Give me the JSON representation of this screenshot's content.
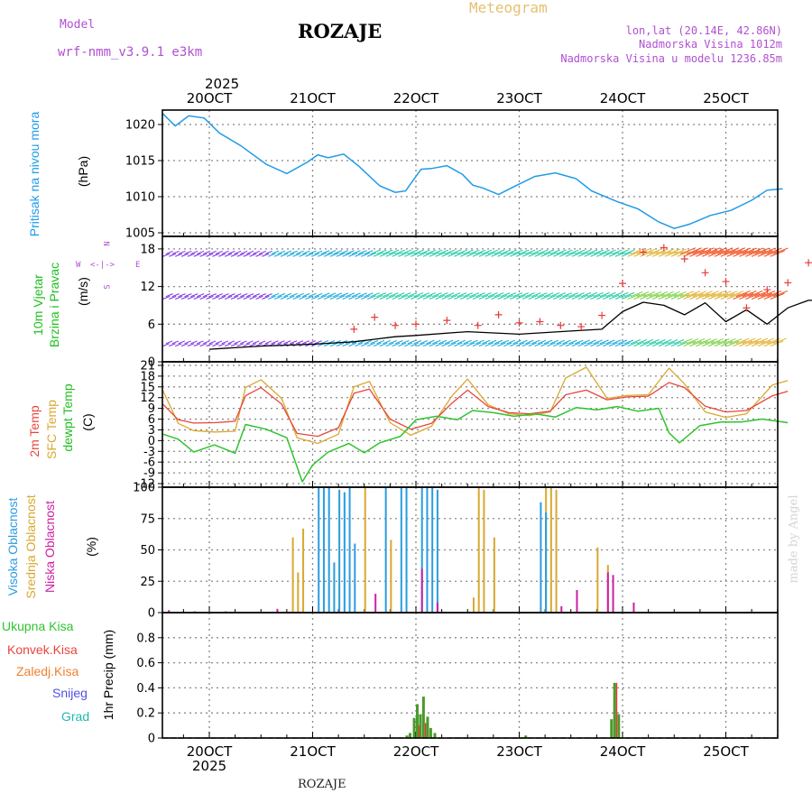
{
  "header": {
    "model_label": "Model",
    "model_name": "wrf-nmm_v3.9.1 e3km",
    "title": "ROZAJE",
    "subtitle": "Meteogram",
    "lonlat": "lon,lat (20.14E, 42.86N)",
    "elevation": "Nadmorska Visina 1012m",
    "model_elevation": "Nadmorska Visina u modelu 1236.85m",
    "watermark": "made by Angel",
    "footer_station": "ROZAJE",
    "year": "2025"
  },
  "colors": {
    "pressure": "#1e9be8",
    "temp2m": "#e8453c",
    "sfc": "#d9a830",
    "dewpt": "#2ec42e",
    "high_cloud": "#2a9ce0",
    "mid_cloud": "#d9a830",
    "low_cloud": "#cc1fa3",
    "total_precip": "#4a9a2a",
    "conv_precip": "#e0403a",
    "frozen_precip": "#f08030",
    "snow": "#5050e0",
    "graupel": "#20b8b0",
    "wind_speed_line": "#000000",
    "gust_marker": "#e83a3a",
    "direction_label": "#b050d0"
  },
  "chart_data": [
    {
      "type": "line",
      "panel": "pressure",
      "title": "Pritisak na nivou mora",
      "ylabel": "(hPa)",
      "ylim": [
        1004.5,
        1022
      ],
      "yticks": [
        1005,
        1010,
        1015,
        1020
      ],
      "grid": true,
      "xlim_days": [
        0,
        6.1
      ],
      "x_top_ticks": [
        "20OCT",
        "21OCT",
        "22OCT",
        "23OCT",
        "24OCT",
        "25OCT"
      ],
      "x_days": [
        0,
        0.12,
        0.25,
        0.4,
        0.55,
        0.75,
        1.0,
        1.2,
        1.4,
        1.5,
        1.6,
        1.75,
        1.9,
        2.1,
        2.25,
        2.35,
        2.5,
        2.6,
        2.75,
        2.9,
        3.0,
        3.1,
        3.25,
        3.4,
        3.6,
        3.8,
        4.0,
        4.15,
        4.4,
        4.6,
        4.8,
        4.95,
        5.1,
        5.3,
        5.5,
        5.7,
        5.85,
        6.0
      ],
      "values": [
        1021.5,
        1019.8,
        1021.2,
        1020.9,
        1018.8,
        1017.1,
        1014.5,
        1013.2,
        1014.8,
        1015.8,
        1015.4,
        1015.9,
        1014.2,
        1011.5,
        1010.6,
        1010.8,
        1013.8,
        1013.9,
        1014.3,
        1013.1,
        1011.6,
        1011.2,
        1010.3,
        1011.4,
        1012.8,
        1013.3,
        1012.5,
        1010.8,
        1009.3,
        1008.3,
        1006.5,
        1005.6,
        1006.2,
        1007.4,
        1008.1,
        1009.5,
        1010.9,
        1011.1
      ]
    },
    {
      "type": "line",
      "panel": "wind",
      "title": "10m Vjetar Brzina i Pravac",
      "ylabel": "(m/s)",
      "direction_labels": [
        "N",
        "W",
        "<-|->",
        "E",
        "S"
      ],
      "ylim": [
        0,
        20
      ],
      "yticks": [
        0,
        6,
        12,
        18
      ],
      "grid": true,
      "series": [
        {
          "name": "Brzina vjetra",
          "x_days": [
            0,
            0.5,
            1.0,
            1.4,
            1.6,
            1.8,
            2.0,
            2.5,
            3.0,
            3.5,
            3.8,
            4.0,
            4.2,
            4.4,
            4.6,
            4.8,
            5.0,
            5.2,
            5.4,
            5.6,
            5.8,
            6.0
          ],
          "values": [
            2.0,
            2.5,
            2.8,
            3.2,
            3.6,
            4.0,
            4.2,
            4.8,
            4.4,
            4.9,
            5.2,
            8.0,
            9.5,
            9.0,
            7.5,
            9.4,
            6.4,
            8.3,
            6.0,
            8.6,
            9.8,
            9.8
          ]
        },
        {
          "name": "Udar vjetra",
          "x_days": [
            1.4,
            1.6,
            1.8,
            2.0,
            2.3,
            2.6,
            2.8,
            3.0,
            3.2,
            3.4,
            3.6,
            3.8,
            4.0,
            4.2,
            4.4,
            4.6,
            4.8,
            5.0,
            5.2,
            5.4,
            5.6,
            5.8,
            6.0
          ],
          "values": [
            5.2,
            7.1,
            5.8,
            6.0,
            6.6,
            5.8,
            7.5,
            6.2,
            6.4,
            5.8,
            5.6,
            7.4,
            12.5,
            17.5,
            18.2,
            16.4,
            14.2,
            12.8,
            8.6,
            11.5,
            12.6,
            15.8,
            14.6
          ]
        }
      ]
    },
    {
      "type": "line",
      "panel": "temperature",
      "title": "2m Temp",
      "title2": "SFC Temp",
      "title3": "dewpt Temp",
      "ylabel": "(C)",
      "ylim": [
        -13,
        22
      ],
      "yticks": [
        -12,
        -9,
        -6,
        -3,
        0,
        3,
        6,
        9,
        12,
        15,
        18,
        21
      ],
      "grid": true,
      "series": [
        {
          "name": "2m Temp",
          "x_days": [
            0,
            0.15,
            0.3,
            0.5,
            0.7,
            0.8,
            0.95,
            1.15,
            1.3,
            1.5,
            1.7,
            1.85,
            2.0,
            2.2,
            2.4,
            2.6,
            2.8,
            2.95,
            3.15,
            3.35,
            3.55,
            3.75,
            3.9,
            4.1,
            4.3,
            4.5,
            4.7,
            4.9,
            5.05,
            5.25,
            5.45,
            5.65,
            5.9,
            6.05
          ],
          "values": [
            10.2,
            5.8,
            4.9,
            5.0,
            5.4,
            12.5,
            14.8,
            10.2,
            2.0,
            1.2,
            3.6,
            13.2,
            14.4,
            6.0,
            3.2,
            4.8,
            10.5,
            14.1,
            9.5,
            7.8,
            7.5,
            8.2,
            12.8,
            14.1,
            11.4,
            12.2,
            12.4,
            16.2,
            14.8,
            9.6,
            8.0,
            8.4,
            12.5,
            13.8
          ]
        },
        {
          "name": "SFC Temp",
          "x_days": [
            0,
            0.15,
            0.3,
            0.5,
            0.7,
            0.8,
            0.95,
            1.15,
            1.3,
            1.5,
            1.7,
            1.85,
            2.0,
            2.2,
            2.4,
            2.6,
            2.8,
            2.95,
            3.15,
            3.35,
            3.55,
            3.75,
            3.9,
            4.1,
            4.3,
            4.5,
            4.7,
            4.9,
            5.05,
            5.25,
            5.45,
            5.65,
            5.9,
            6.05
          ],
          "values": [
            14.0,
            4.8,
            2.8,
            2.4,
            2.6,
            14.8,
            17.0,
            11.8,
            0.8,
            -0.8,
            1.8,
            15.0,
            16.5,
            5.0,
            1.5,
            4.0,
            12.5,
            17.2,
            10.0,
            7.5,
            7.0,
            8.0,
            17.5,
            20.5,
            11.8,
            12.6,
            12.8,
            20.2,
            15.8,
            8.0,
            6.5,
            7.5,
            15.5,
            16.8
          ]
        },
        {
          "name": "dewpt Temp",
          "x_days": [
            0,
            0.15,
            0.3,
            0.5,
            0.7,
            0.8,
            1.0,
            1.2,
            1.35,
            1.45,
            1.6,
            1.8,
            1.95,
            2.1,
            2.3,
            2.45,
            2.65,
            2.85,
            3.0,
            3.2,
            3.4,
            3.6,
            3.8,
            4.0,
            4.2,
            4.4,
            4.6,
            4.8,
            4.9,
            5.0,
            5.2,
            5.4,
            5.6,
            5.8,
            6.05
          ],
          "values": [
            1.8,
            0.4,
            -3.2,
            -1.2,
            -3.5,
            4.5,
            3.2,
            0.8,
            -11.5,
            -6.8,
            -3.2,
            -0.8,
            -3.4,
            -0.6,
            1.2,
            5.8,
            6.8,
            5.8,
            8.4,
            7.8,
            6.8,
            7.5,
            6.6,
            9.2,
            8.6,
            9.5,
            8.2,
            9.0,
            2.2,
            -0.6,
            4.2,
            5.2,
            5.2,
            6.0,
            5.0
          ]
        }
      ]
    },
    {
      "type": "bar",
      "panel": "cloud",
      "title": "Visoka Oblacnost",
      "title2": "Srednja Oblacnost",
      "title3": "Niska Oblacnost",
      "ylabel": "(%)",
      "ylim": [
        0,
        100
      ],
      "yticks": [
        0,
        25,
        50,
        75,
        100
      ],
      "grid": true,
      "series": [
        {
          "name": "Srednja Oblacnost",
          "x_days": [
            1.25,
            1.3,
            1.35,
            1.95,
            2.2,
            3.0,
            3.05,
            3.1,
            3.2,
            3.7,
            3.75,
            3.8,
            4.2,
            4.3
          ],
          "values": [
            60,
            32,
            67,
            100,
            58,
            12,
            100,
            98,
            60,
            100,
            100,
            98,
            52,
            38
          ]
        },
        {
          "name": "Visoka Oblacnost",
          "x_days": [
            1.5,
            1.55,
            1.6,
            1.65,
            1.7,
            1.75,
            1.8,
            1.85,
            2.15,
            2.3,
            2.35,
            2.5,
            2.55,
            2.6,
            2.65,
            3.65,
            3.7
          ],
          "values": [
            100,
            100,
            100,
            40,
            98,
            96,
            100,
            55,
            100,
            100,
            100,
            100,
            100,
            100,
            98,
            88,
            80
          ]
        },
        {
          "name": "Niska Oblacnost",
          "x_days": [
            0.05,
            0.3,
            0.6,
            1.1,
            2.05,
            2.5,
            2.65,
            3.85,
            4.0,
            4.3,
            4.35,
            4.55
          ],
          "values": [
            2,
            1,
            1,
            3,
            15,
            35,
            8,
            5,
            18,
            32,
            30,
            8
          ]
        }
      ]
    },
    {
      "type": "bar",
      "panel": "precip",
      "title": "1hr Precip",
      "ylabel": "(mm)",
      "legend": [
        "Ukupna Kisa",
        "Konvek.Kisa",
        "Zaledj.Kisa",
        "Snijeg",
        "Grad"
      ],
      "ylim": [
        0,
        1.0
      ],
      "yticks": [
        0,
        0.2,
        0.4,
        0.6,
        0.8
      ],
      "grid": true,
      "x_bottom_ticks": [
        "20OCT",
        "21OCT",
        "22OCT",
        "23OCT",
        "24OCT",
        "25OCT"
      ],
      "series": [
        {
          "name": "Ukupna Kisa",
          "x_days": [
            2.35,
            2.38,
            2.42,
            2.45,
            2.48,
            2.51,
            2.55,
            2.58,
            2.62,
            3.5,
            4.33,
            4.36,
            4.4
          ],
          "values": [
            0.02,
            0.04,
            0.16,
            0.27,
            0.19,
            0.33,
            0.17,
            0.08,
            0.04,
            0.02,
            0.15,
            0.44,
            0.19
          ]
        },
        {
          "name": "Konvek.Kisa",
          "x_days": [
            2.45,
            2.51,
            4.36
          ],
          "values": [
            0.1,
            0.12,
            0.44
          ]
        }
      ]
    }
  ]
}
